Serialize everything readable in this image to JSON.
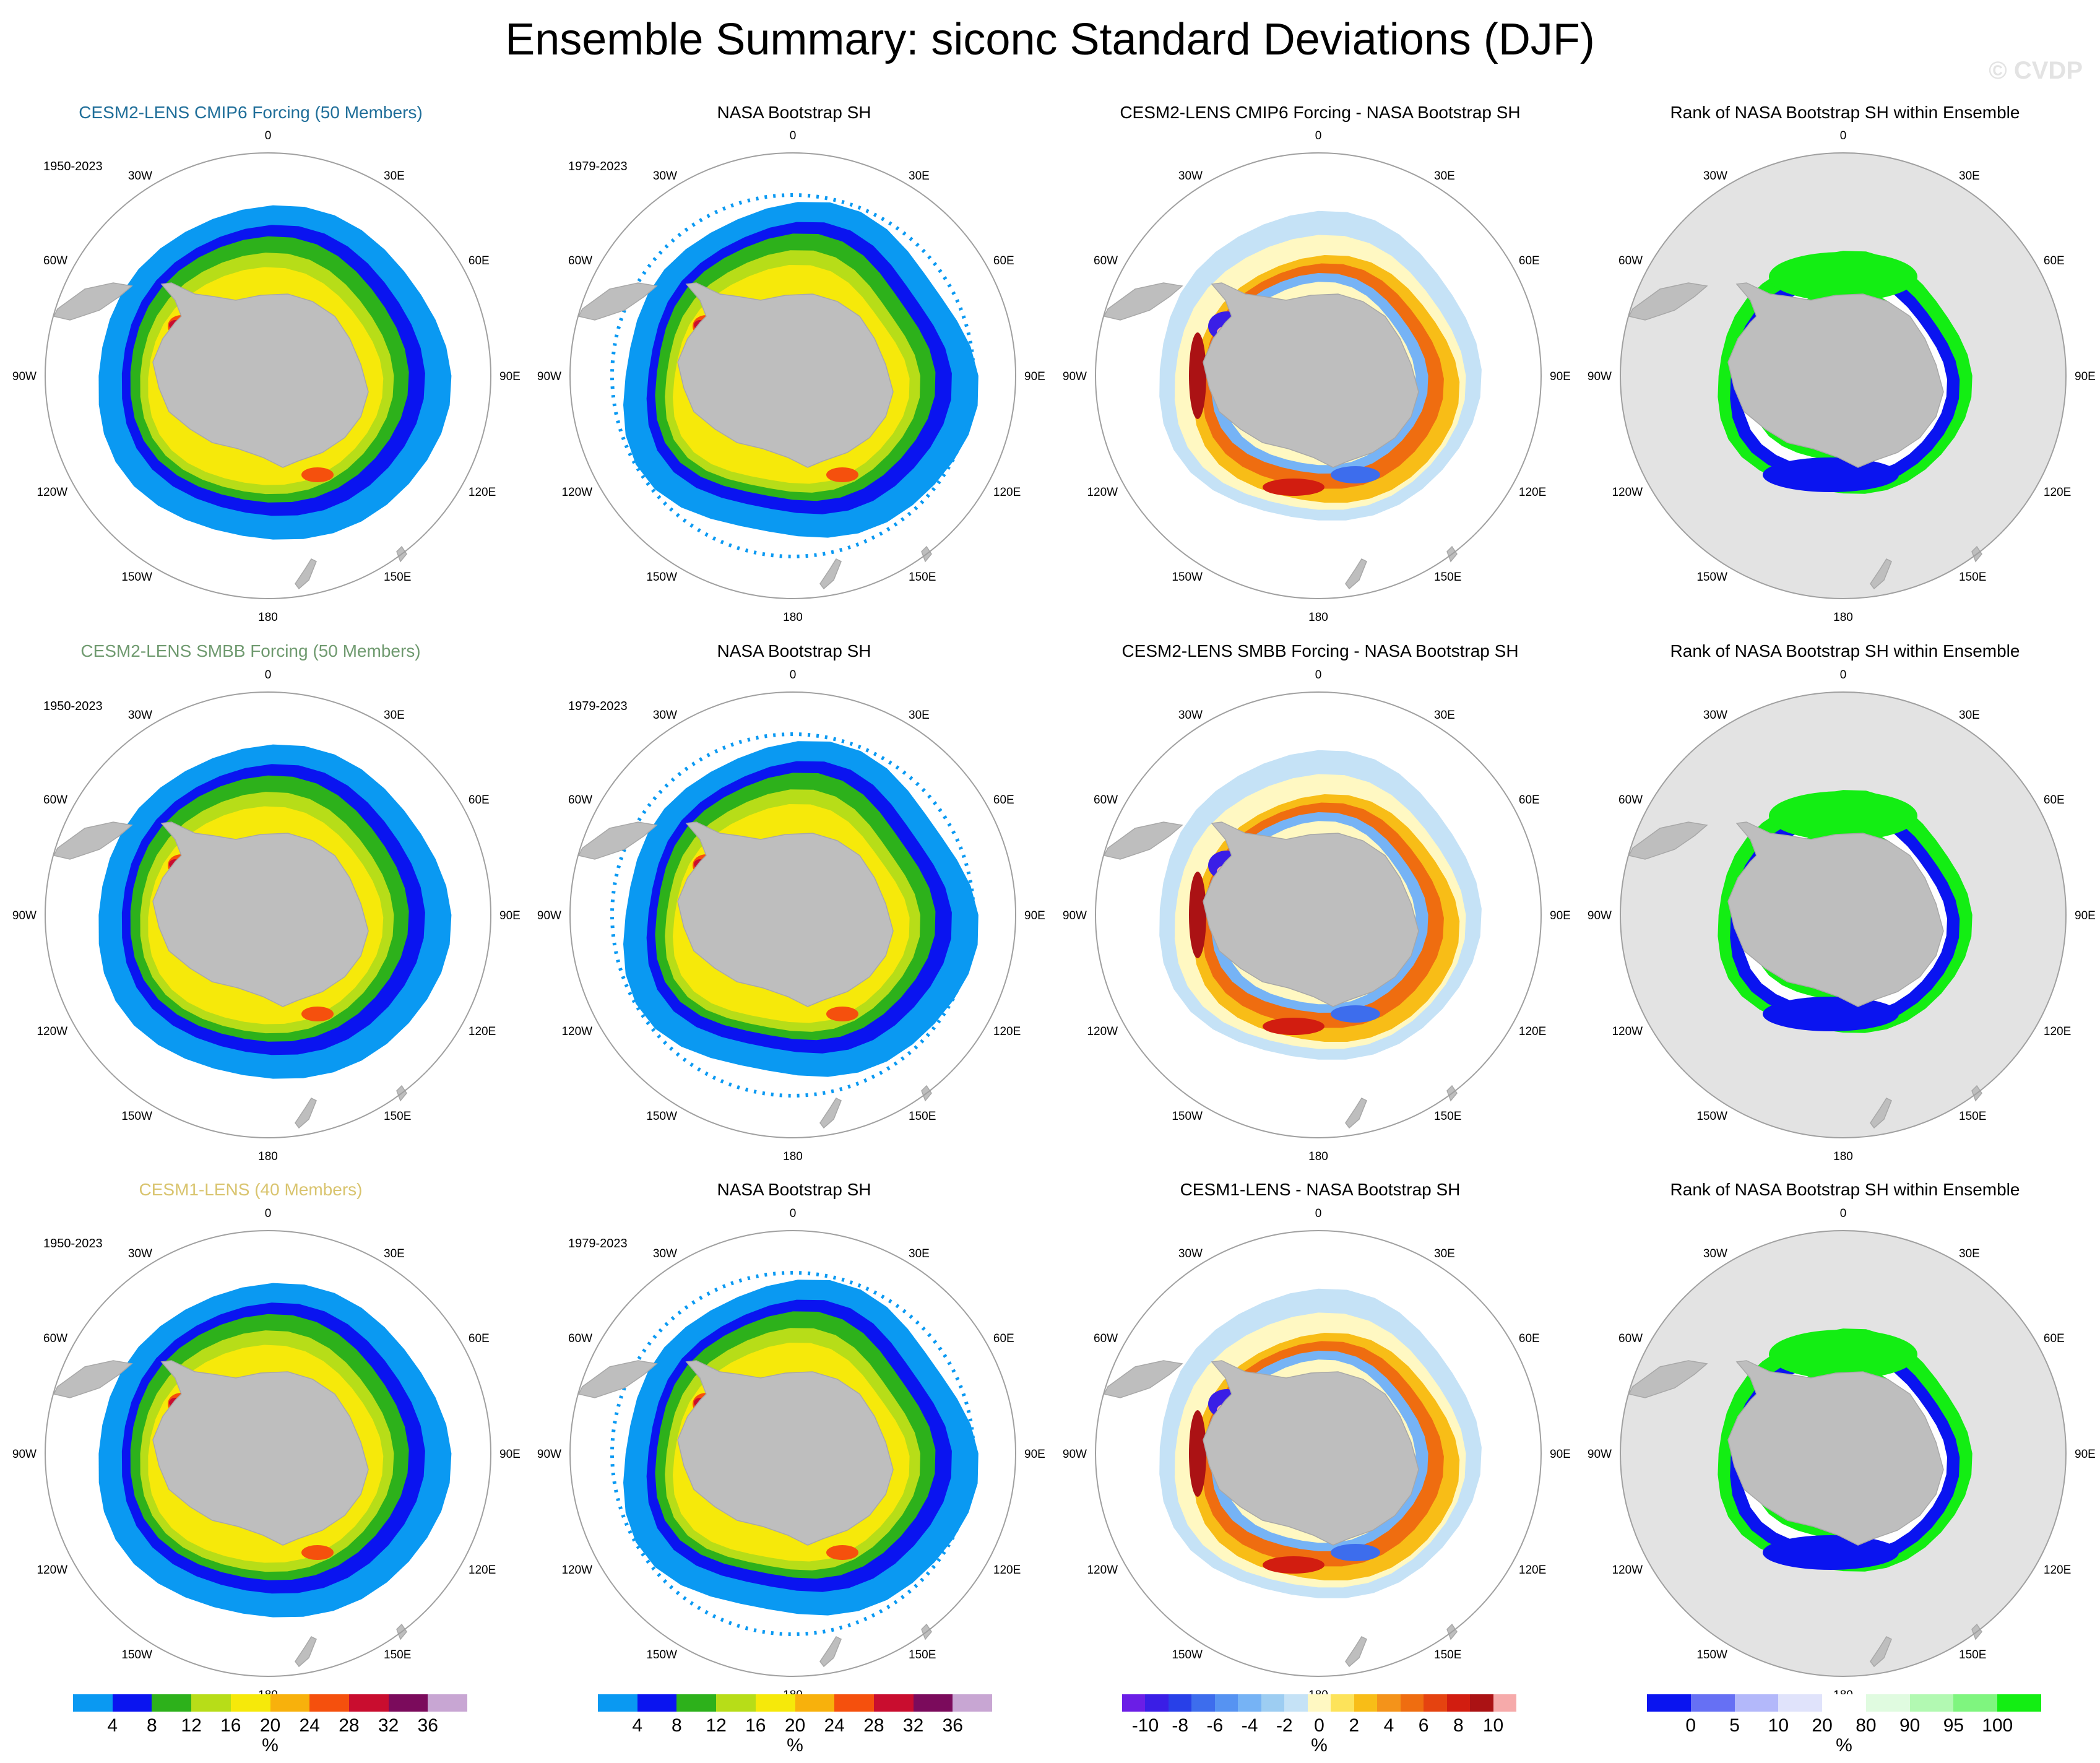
{
  "title": "Ensemble Summary: siconc Standard Deviations (DJF)",
  "watermark": "© CVDP",
  "lon_labels": [
    "0",
    "30E",
    "60E",
    "90E",
    "120E",
    "150E",
    "180",
    "150W",
    "120W",
    "90W",
    "60W",
    "30W"
  ],
  "rows": [
    {
      "ensemble_title": "CESM2-LENS CMIP6 Forcing (50 Members)",
      "ensemble_color": "#1f6e99",
      "ensemble_period": "1950-2023",
      "obs_title": "NASA Bootstrap SH",
      "obs_period": "1979-2023",
      "diff_title": "CESM2-LENS CMIP6 Forcing - NASA Bootstrap SH",
      "rank_title": "Rank of NASA Bootstrap SH within Ensemble"
    },
    {
      "ensemble_title": "CESM2-LENS SMBB Forcing (50 Members)",
      "ensemble_color": "#6f9a6f",
      "ensemble_period": "1950-2023",
      "obs_title": "NASA Bootstrap SH",
      "obs_period": "1979-2023",
      "diff_title": "CESM2-LENS SMBB Forcing - NASA Bootstrap SH",
      "rank_title": "Rank of NASA Bootstrap SH within Ensemble"
    },
    {
      "ensemble_title": "CESM1-LENS (40 Members)",
      "ensemble_color": "#d9c46e",
      "ensemble_period": "1950-2023",
      "obs_title": "NASA Bootstrap SH",
      "obs_period": "1979-2023",
      "diff_title": "CESM1-LENS - NASA Bootstrap SH",
      "rank_title": "Rank of NASA Bootstrap SH within Ensemble"
    }
  ],
  "colorbars": {
    "stddev": {
      "labels": [
        "4",
        "8",
        "12",
        "16",
        "20",
        "24",
        "28",
        "32",
        "36"
      ],
      "colors": [
        "#0a99f2",
        "#0a14f0",
        "#2db11b",
        "#b7dd18",
        "#f6e90a",
        "#f8b10c",
        "#f5500d",
        "#c90d2f",
        "#7b0b5c",
        "#c8a6d3"
      ],
      "unit": "%"
    },
    "diff": {
      "labels": [
        "-10",
        "-8",
        "-6",
        "-4",
        "-2",
        "0",
        "2",
        "4",
        "6",
        "8",
        "10"
      ],
      "colors": [
        "#6b1ee6",
        "#3a1ee6",
        "#2840e8",
        "#3d6ded",
        "#5693f2",
        "#76b3f5",
        "#9dcdf2",
        "#c5e2f6",
        "#fff8c2",
        "#fde35a",
        "#f8bd17",
        "#f4931a",
        "#ef6d10",
        "#e54310",
        "#d21d10",
        "#ab1214",
        "#f6aaaa"
      ],
      "unit": "%"
    },
    "rank": {
      "labels": [
        "0",
        "5",
        "10",
        "20",
        "80",
        "90",
        "95",
        "100"
      ],
      "colors": [
        "#0a14f0",
        "#6670f4",
        "#b3b8fa",
        "#e0e3fb",
        "#ffffff",
        "#e0fbe0",
        "#b2f9b2",
        "#7ff57f",
        "#13ee13"
      ],
      "unit": "%"
    }
  }
}
